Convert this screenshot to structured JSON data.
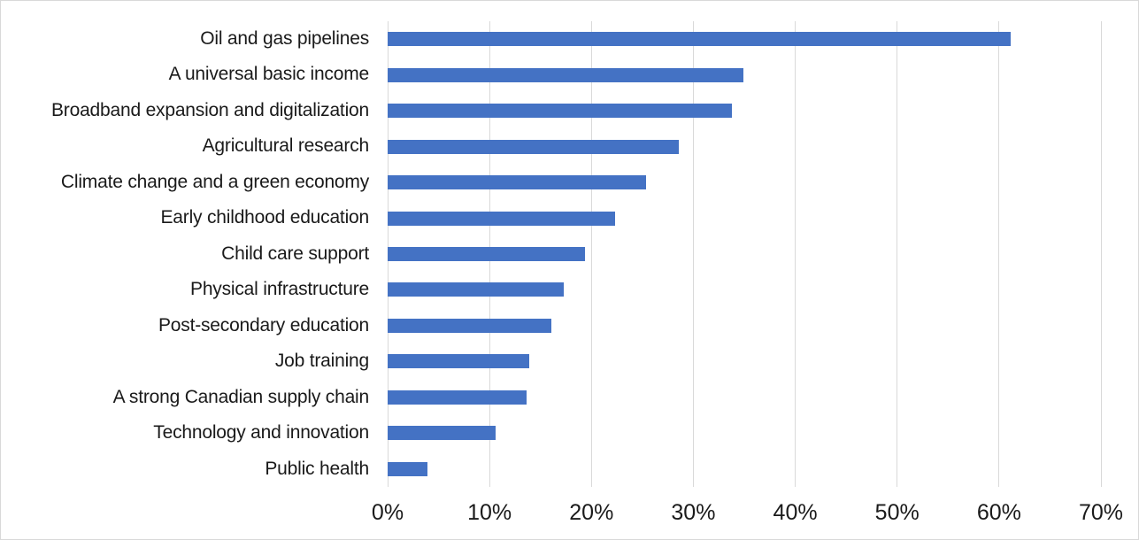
{
  "chart_data": {
    "type": "bar",
    "orientation": "horizontal",
    "title": "",
    "xlabel": "",
    "ylabel": "",
    "categories": [
      "Oil and gas pipelines",
      "A universal basic income",
      "Broadband expansion and digitalization",
      "Agricultural research",
      "Climate change and a green economy",
      "Early childhood education",
      "Child care support",
      "Physical infrastructure",
      "Post-secondary education",
      "Job training",
      "A strong Canadian supply chain",
      "Technology and innovation",
      "Public health"
    ],
    "values": [
      61.1,
      34.9,
      33.8,
      28.6,
      25.4,
      22.3,
      19.4,
      17.3,
      16.1,
      13.9,
      13.6,
      10.6,
      3.9
    ],
    "value_format": "percent",
    "xlim": [
      0,
      70
    ],
    "x_ticks": [
      "0%",
      "10%",
      "20%",
      "30%",
      "40%",
      "50%",
      "60%",
      "70%"
    ],
    "x_tick_values": [
      0,
      10,
      20,
      30,
      40,
      50,
      60,
      70
    ],
    "grid": "vertical-major-on",
    "legend": "none",
    "colors": {
      "bar": "#4472c4",
      "gridline": "#d9d9d9",
      "border": "#d9d9d9",
      "text": "#1a1a1a",
      "background": "#ffffff"
    }
  }
}
